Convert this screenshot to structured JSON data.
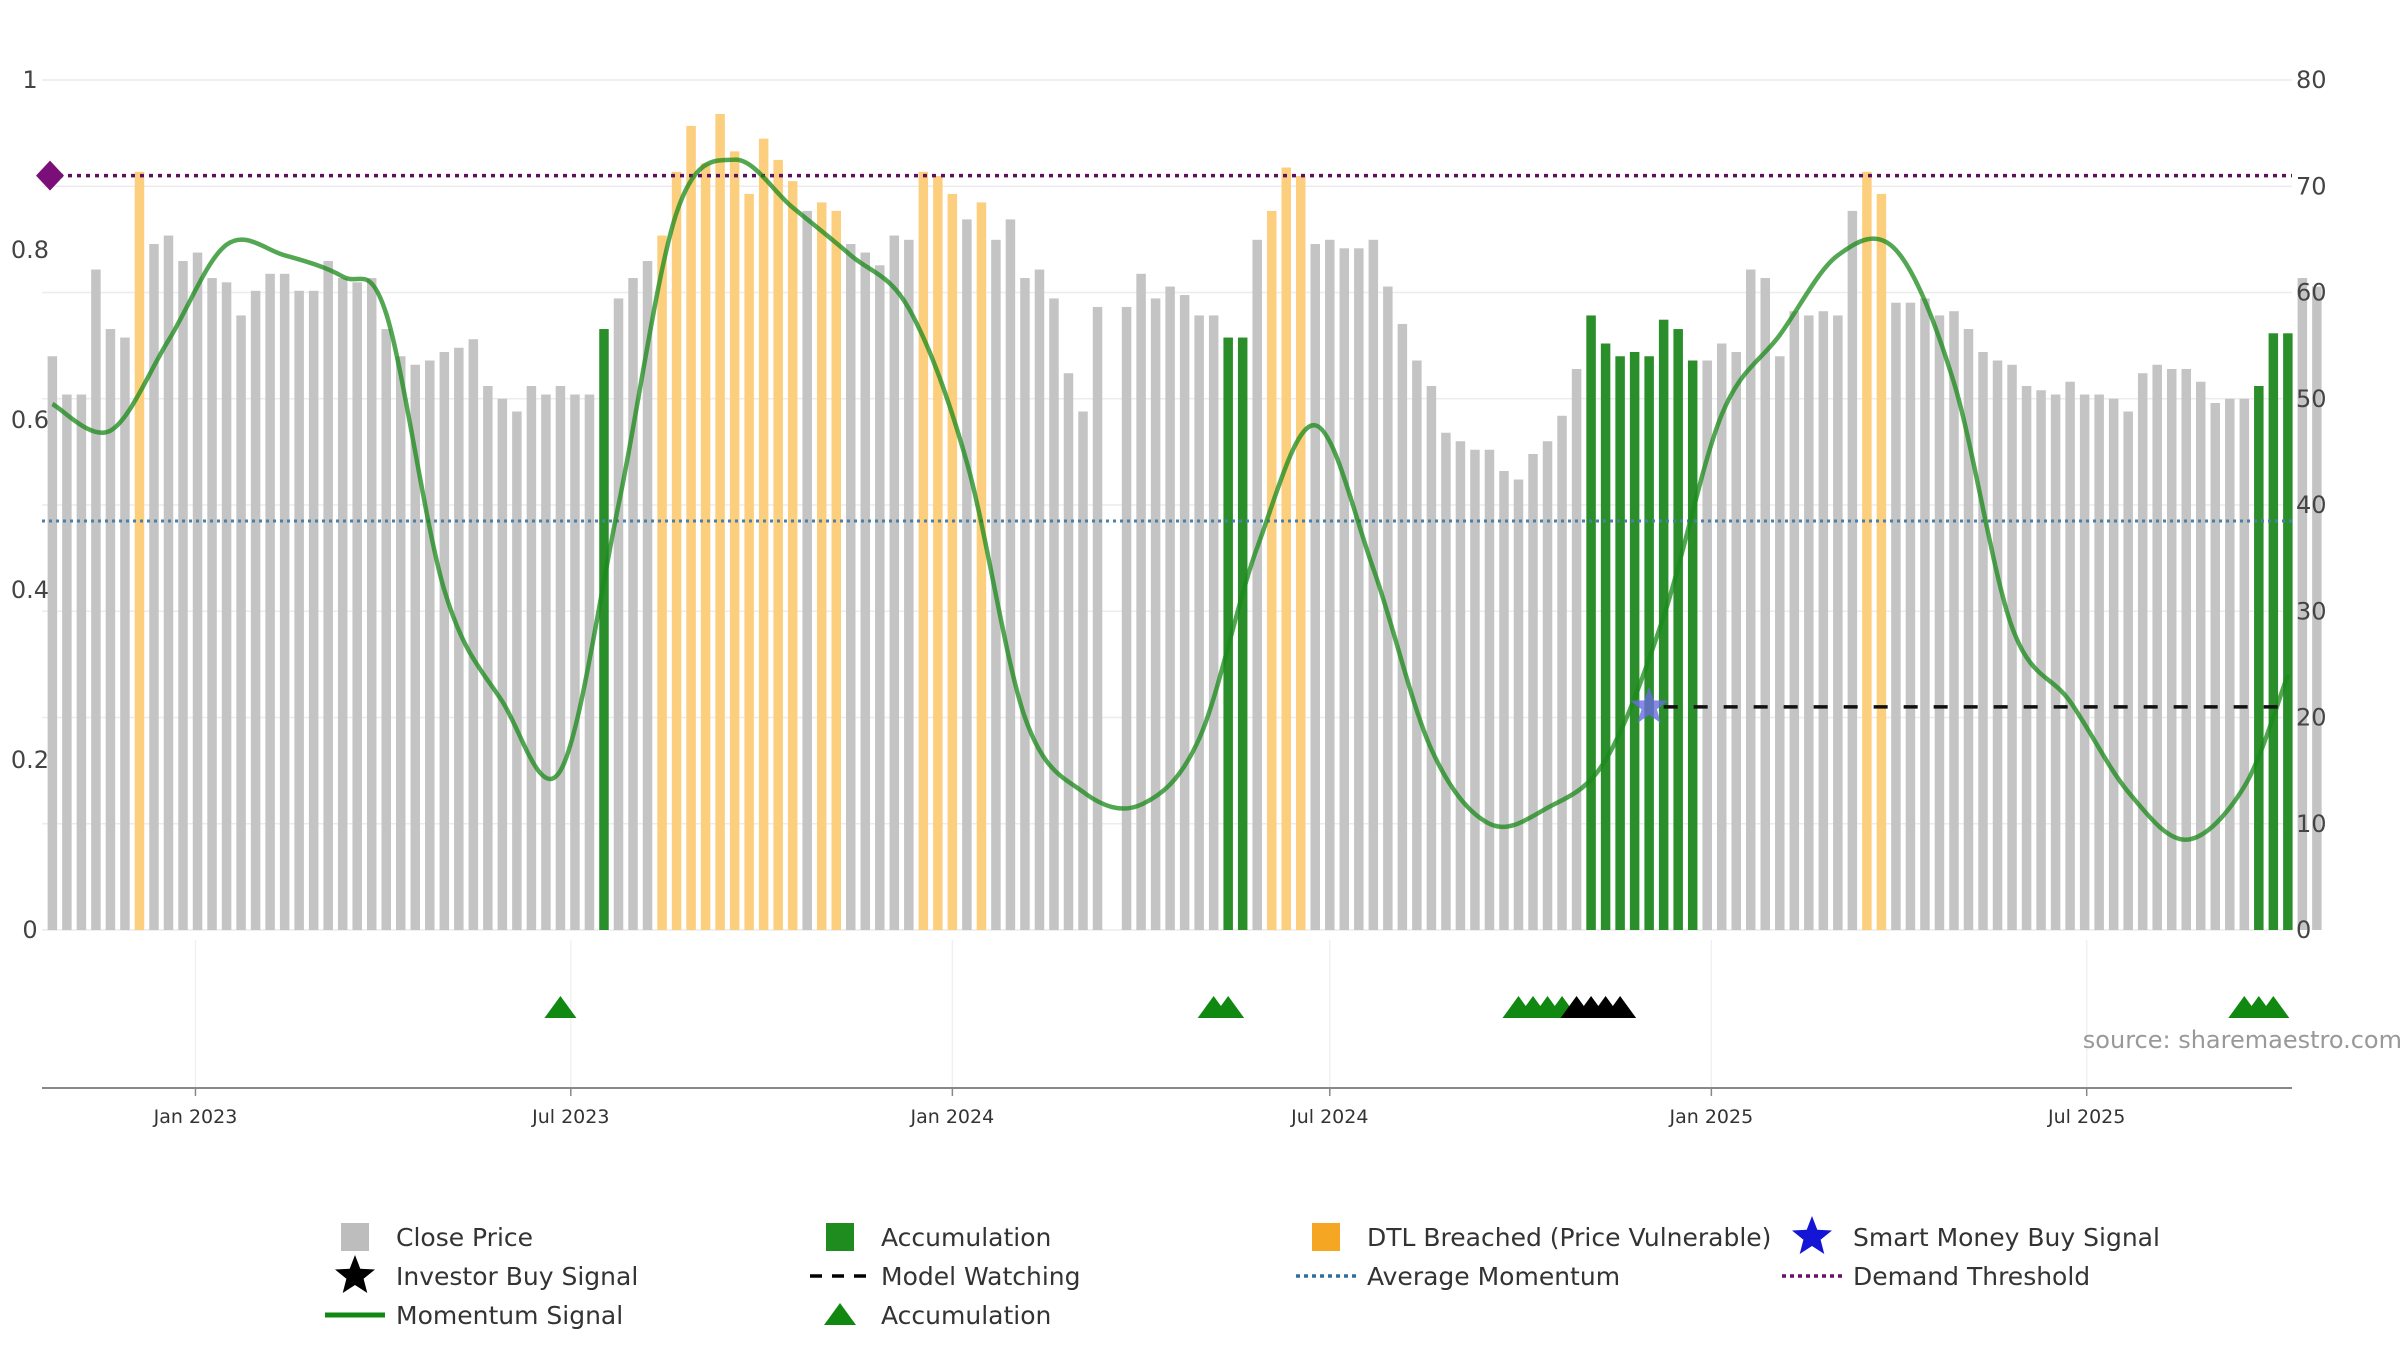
{
  "chart_data": {
    "type": "bar",
    "title": "",
    "left_axis": {
      "ticks": [
        "0",
        "0.2",
        "0.4",
        "0.6",
        "0.8",
        "1"
      ],
      "range": [
        0,
        1
      ]
    },
    "right_axis": {
      "ticks": [
        "0",
        "10",
        "20",
        "30",
        "40",
        "50",
        "60",
        "70",
        "80"
      ],
      "range": [
        0,
        80
      ]
    },
    "x_axis": {
      "ticks": [
        "Jan 2023",
        "Jul 2023",
        "Jan 2024",
        "Jul 2024",
        "Jan 2025",
        "Jul 2025"
      ],
      "range": [
        "2022-10-19",
        "2025-10-08"
      ]
    },
    "bar_period_start": "2022-10-24",
    "bar_period_days": 7,
    "bars": [
      {
        "s": "c",
        "v": 0.675
      },
      {
        "s": "c",
        "v": 0.63
      },
      {
        "s": "c",
        "v": 0.63
      },
      {
        "s": "c",
        "v": 0.777
      },
      {
        "s": "c",
        "v": 0.707
      },
      {
        "s": "c",
        "v": 0.697
      },
      {
        "s": "d",
        "v": 0.892
      },
      {
        "s": "c",
        "v": 0.807
      },
      {
        "s": "c",
        "v": 0.817
      },
      {
        "s": "c",
        "v": 0.787
      },
      {
        "s": "c",
        "v": 0.797
      },
      {
        "s": "c",
        "v": 0.767
      },
      {
        "s": "c",
        "v": 0.762
      },
      {
        "s": "c",
        "v": 0.723
      },
      {
        "s": "c",
        "v": 0.752
      },
      {
        "s": "c",
        "v": 0.772
      },
      {
        "s": "c",
        "v": 0.772
      },
      {
        "s": "c",
        "v": 0.752
      },
      {
        "s": "c",
        "v": 0.752
      },
      {
        "s": "c",
        "v": 0.787
      },
      {
        "s": "c",
        "v": 0.767
      },
      {
        "s": "c",
        "v": 0.762
      },
      {
        "s": "c",
        "v": 0.767
      },
      {
        "s": "c",
        "v": 0.707
      },
      {
        "s": "c",
        "v": 0.675
      },
      {
        "s": "c",
        "v": 0.665
      },
      {
        "s": "c",
        "v": 0.67
      },
      {
        "s": "c",
        "v": 0.68
      },
      {
        "s": "c",
        "v": 0.685
      },
      {
        "s": "c",
        "v": 0.695
      },
      {
        "s": "c",
        "v": 0.64
      },
      {
        "s": "c",
        "v": 0.625
      },
      {
        "s": "c",
        "v": 0.61
      },
      {
        "s": "c",
        "v": 0.64
      },
      {
        "s": "c",
        "v": 0.63
      },
      {
        "s": "c",
        "v": 0.64
      },
      {
        "s": "c",
        "v": 0.63
      },
      {
        "s": "c",
        "v": 0.63
      },
      {
        "s": "a",
        "v": 0.707
      },
      {
        "s": "c",
        "v": 0.743
      },
      {
        "s": "c",
        "v": 0.767
      },
      {
        "s": "c",
        "v": 0.787
      },
      {
        "s": "d",
        "v": 0.817
      },
      {
        "s": "d",
        "v": 0.892
      },
      {
        "s": "d",
        "v": 0.946
      },
      {
        "s": "d",
        "v": 0.902
      },
      {
        "s": "d",
        "v": 0.96
      },
      {
        "s": "d",
        "v": 0.916
      },
      {
        "s": "d",
        "v": 0.866
      },
      {
        "s": "d",
        "v": 0.931
      },
      {
        "s": "d",
        "v": 0.906
      },
      {
        "s": "d",
        "v": 0.881
      },
      {
        "s": "c",
        "v": 0.846
      },
      {
        "s": "d",
        "v": 0.856
      },
      {
        "s": "d",
        "v": 0.846
      },
      {
        "s": "c",
        "v": 0.807
      },
      {
        "s": "c",
        "v": 0.797
      },
      {
        "s": "c",
        "v": 0.782
      },
      {
        "s": "c",
        "v": 0.817
      },
      {
        "s": "c",
        "v": 0.812
      },
      {
        "s": "d",
        "v": 0.892
      },
      {
        "s": "d",
        "v": 0.887
      },
      {
        "s": "d",
        "v": 0.866
      },
      {
        "s": "c",
        "v": 0.836
      },
      {
        "s": "d",
        "v": 0.856
      },
      {
        "s": "c",
        "v": 0.812
      },
      {
        "s": "c",
        "v": 0.836
      },
      {
        "s": "c",
        "v": 0.767
      },
      {
        "s": "c",
        "v": 0.777
      },
      {
        "s": "c",
        "v": 0.743
      },
      {
        "s": "c",
        "v": 0.655
      },
      {
        "s": "c",
        "v": 0.61
      },
      {
        "s": "c",
        "v": 0.733
      },
      {
        "s": "c",
        "v": 0.0
      },
      {
        "s": "c",
        "v": 0.733
      },
      {
        "s": "c",
        "v": 0.772
      },
      {
        "s": "c",
        "v": 0.743
      },
      {
        "s": "c",
        "v": 0.757
      },
      {
        "s": "c",
        "v": 0.747
      },
      {
        "s": "c",
        "v": 0.723
      },
      {
        "s": "c",
        "v": 0.723
      },
      {
        "s": "a",
        "v": 0.697
      },
      {
        "s": "a",
        "v": 0.697
      },
      {
        "s": "c",
        "v": 0.812
      },
      {
        "s": "d",
        "v": 0.846
      },
      {
        "s": "d",
        "v": 0.897
      },
      {
        "s": "d",
        "v": 0.887
      },
      {
        "s": "c",
        "v": 0.807
      },
      {
        "s": "c",
        "v": 0.812
      },
      {
        "s": "c",
        "v": 0.802
      },
      {
        "s": "c",
        "v": 0.802
      },
      {
        "s": "c",
        "v": 0.812
      },
      {
        "s": "c",
        "v": 0.757
      },
      {
        "s": "c",
        "v": 0.713
      },
      {
        "s": "c",
        "v": 0.67
      },
      {
        "s": "c",
        "v": 0.64
      },
      {
        "s": "c",
        "v": 0.585
      },
      {
        "s": "c",
        "v": 0.575
      },
      {
        "s": "c",
        "v": 0.565
      },
      {
        "s": "c",
        "v": 0.565
      },
      {
        "s": "c",
        "v": 0.54
      },
      {
        "s": "c",
        "v": 0.53
      },
      {
        "s": "c",
        "v": 0.56
      },
      {
        "s": "c",
        "v": 0.575
      },
      {
        "s": "c",
        "v": 0.605
      },
      {
        "s": "c",
        "v": 0.66
      },
      {
        "s": "a",
        "v": 0.723
      },
      {
        "s": "a",
        "v": 0.69
      },
      {
        "s": "a",
        "v": 0.675
      },
      {
        "s": "a",
        "v": 0.68
      },
      {
        "s": "a",
        "v": 0.675
      },
      {
        "s": "a",
        "v": 0.718
      },
      {
        "s": "a",
        "v": 0.707
      },
      {
        "s": "a",
        "v": 0.67
      },
      {
        "s": "c",
        "v": 0.67
      },
      {
        "s": "c",
        "v": 0.69
      },
      {
        "s": "c",
        "v": 0.68
      },
      {
        "s": "c",
        "v": 0.777
      },
      {
        "s": "c",
        "v": 0.767
      },
      {
        "s": "c",
        "v": 0.675
      },
      {
        "s": "c",
        "v": 0.728
      },
      {
        "s": "c",
        "v": 0.723
      },
      {
        "s": "c",
        "v": 0.728
      },
      {
        "s": "c",
        "v": 0.723
      },
      {
        "s": "c",
        "v": 0.846
      },
      {
        "s": "d",
        "v": 0.892
      },
      {
        "s": "d",
        "v": 0.866
      },
      {
        "s": "c",
        "v": 0.738
      },
      {
        "s": "c",
        "v": 0.738
      },
      {
        "s": "c",
        "v": 0.743
      },
      {
        "s": "c",
        "v": 0.723
      },
      {
        "s": "c",
        "v": 0.728
      },
      {
        "s": "c",
        "v": 0.707
      },
      {
        "s": "c",
        "v": 0.68
      },
      {
        "s": "c",
        "v": 0.67
      },
      {
        "s": "c",
        "v": 0.665
      },
      {
        "s": "c",
        "v": 0.64
      },
      {
        "s": "c",
        "v": 0.635
      },
      {
        "s": "c",
        "v": 0.63
      },
      {
        "s": "c",
        "v": 0.645
      },
      {
        "s": "c",
        "v": 0.63
      },
      {
        "s": "c",
        "v": 0.63
      },
      {
        "s": "c",
        "v": 0.625
      },
      {
        "s": "c",
        "v": 0.61
      },
      {
        "s": "c",
        "v": 0.655
      },
      {
        "s": "c",
        "v": 0.665
      },
      {
        "s": "c",
        "v": 0.66
      },
      {
        "s": "c",
        "v": 0.66
      },
      {
        "s": "c",
        "v": 0.645
      },
      {
        "s": "c",
        "v": 0.62
      },
      {
        "s": "c",
        "v": 0.625
      },
      {
        "s": "c",
        "v": 0.625
      },
      {
        "s": "a",
        "v": 0.64
      },
      {
        "s": "a",
        "v": 0.702
      },
      {
        "s": "a",
        "v": 0.702
      },
      {
        "s": "c",
        "v": 0.767
      },
      {
        "s": "c",
        "v": 0.757
      }
    ],
    "momentum": [
      {
        "x": "2022-10-24",
        "y": 49.5
      },
      {
        "x": "2022-11-21",
        "y": 47.0
      },
      {
        "x": "2022-12-19",
        "y": 55.5
      },
      {
        "x": "2023-01-16",
        "y": 64.5
      },
      {
        "x": "2023-02-13",
        "y": 63.5
      },
      {
        "x": "2023-03-13",
        "y": 61.5
      },
      {
        "x": "2023-04-03",
        "y": 58.0
      },
      {
        "x": "2023-05-01",
        "y": 32.0
      },
      {
        "x": "2023-05-29",
        "y": 21.5
      },
      {
        "x": "2023-06-26",
        "y": 15.0
      },
      {
        "x": "2023-07-24",
        "y": 40.0
      },
      {
        "x": "2023-08-21",
        "y": 67.5
      },
      {
        "x": "2023-09-18",
        "y": 72.5
      },
      {
        "x": "2023-10-16",
        "y": 68.0
      },
      {
        "x": "2023-11-13",
        "y": 63.5
      },
      {
        "x": "2023-12-11",
        "y": 58.5
      },
      {
        "x": "2024-01-08",
        "y": 44.0
      },
      {
        "x": "2024-02-05",
        "y": 20.0
      },
      {
        "x": "2024-03-04",
        "y": 13.0
      },
      {
        "x": "2024-04-01",
        "y": 11.8
      },
      {
        "x": "2024-04-29",
        "y": 18.0
      },
      {
        "x": "2024-05-27",
        "y": 36.0
      },
      {
        "x": "2024-06-24",
        "y": 47.5
      },
      {
        "x": "2024-07-22",
        "y": 34.0
      },
      {
        "x": "2024-08-19",
        "y": 17.0
      },
      {
        "x": "2024-09-16",
        "y": 10.0
      },
      {
        "x": "2024-10-14",
        "y": 11.5
      },
      {
        "x": "2024-11-11",
        "y": 16.0
      },
      {
        "x": "2024-12-09",
        "y": 29.5
      },
      {
        "x": "2025-01-06",
        "y": 48.5
      },
      {
        "x": "2025-02-03",
        "y": 56.0
      },
      {
        "x": "2025-03-03",
        "y": 63.5
      },
      {
        "x": "2025-03-31",
        "y": 64.0
      },
      {
        "x": "2025-04-28",
        "y": 51.5
      },
      {
        "x": "2025-05-26",
        "y": 28.5
      },
      {
        "x": "2025-06-23",
        "y": 21.5
      },
      {
        "x": "2025-07-21",
        "y": 13.0
      },
      {
        "x": "2025-08-18",
        "y": 8.5
      },
      {
        "x": "2025-09-15",
        "y": 13.5
      },
      {
        "x": "2025-10-06",
        "y": 24.0
      }
    ],
    "average_momentum": 38.5,
    "demand_threshold": 71.0,
    "demand_threshold_marker": "diamond",
    "model_watching": {
      "x_start": "2024-12-09",
      "x_end": "2025-10-06",
      "y": 21.0
    },
    "smart_money_buy_signals": [
      {
        "x": "2024-12-02",
        "y": 21.0
      }
    ],
    "accumulation_triangles": [
      "2023-06-26",
      "2024-05-06",
      "2024-05-13",
      "2024-09-30",
      "2024-10-07",
      "2024-10-14",
      "2024-10-21"
    ],
    "investor_buy_triangles": [
      "2024-10-28",
      "2024-11-04",
      "2024-11-11",
      "2024-11-18"
    ],
    "accumulation_triangles_late": [
      "2025-09-15",
      "2025-09-22",
      "2025-09-29"
    ],
    "legend": [
      {
        "label": "Close Price",
        "symbol": "square",
        "color": "#bdbdbd"
      },
      {
        "label": "Accumulation",
        "symbol": "square",
        "color": "#1e8c1e"
      },
      {
        "label": "DTL Breached (Price Vulnerable)",
        "symbol": "square",
        "color": "#f5a623"
      },
      {
        "label": "Smart Money Buy Signal",
        "symbol": "star",
        "color": "#1515d6"
      },
      {
        "label": "Investor Buy Signal",
        "symbol": "star",
        "color": "#000000"
      },
      {
        "label": "Model Watching",
        "symbol": "dash",
        "color": "#000000"
      },
      {
        "label": "Average Momentum",
        "symbol": "dot",
        "color": "#2f6fa0"
      },
      {
        "label": "Demand Threshold",
        "symbol": "dot",
        "color": "#6a0f6a"
      },
      {
        "label": "Momentum Signal",
        "symbol": "line",
        "color": "#118811"
      },
      {
        "label": "Accumulation",
        "symbol": "triangle",
        "color": "#118811"
      }
    ],
    "source": "source: sharemaestro.com",
    "grid": true,
    "colors": {
      "close": "#c4c4c4",
      "accumulation": "#2a8f2a",
      "dtl": "#fccf7e",
      "momentum": "#1a8a1a",
      "average": "#4a7fa8",
      "threshold": "#5e0f5e"
    }
  }
}
